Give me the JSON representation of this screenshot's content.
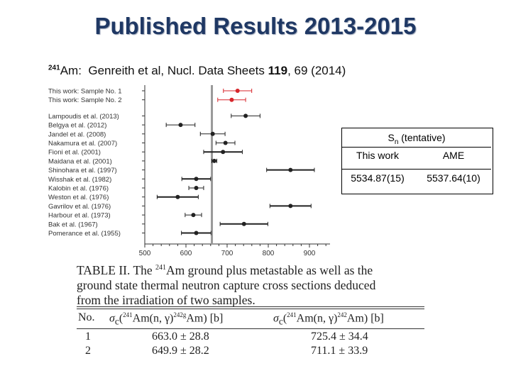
{
  "title": "Published Results 2013-2015",
  "reference": {
    "isotope_mass": "241",
    "isotope_symbol": "Am:",
    "authors": "Genreith et al, Nucl. Data Sheets",
    "volume": "119",
    "pages_year": ", 69 (2014)"
  },
  "chart_data": {
    "type": "scatter",
    "xticks": [
      "500",
      "600",
      "700",
      "800",
      "900"
    ],
    "xlim": [
      500,
      950
    ],
    "reference_line_x": 663,
    "entries": [
      {
        "label": "This work: Sample No. 1",
        "value": 725.4,
        "err": 34.4,
        "color": "#d7262b"
      },
      {
        "label": "This work: Sample No. 2",
        "value": 711.1,
        "err": 33.9,
        "color": "#d7262b"
      },
      {
        "label": "Lampoudis et al. (2013)",
        "value": 745,
        "err": 35,
        "color": "#222222"
      },
      {
        "label": "Belgya et al. (2012)",
        "value": 587,
        "err": 35,
        "color": "#222222"
      },
      {
        "label": "Jandel et al. (2008)",
        "value": 665,
        "err": 30,
        "color": "#222222"
      },
      {
        "label": "Nakamura et al. (2007)",
        "value": 696,
        "err": 23,
        "color": "#222222"
      },
      {
        "label": "Fioni et al. (2001)",
        "value": 690,
        "err": 47,
        "color": "#222222"
      },
      {
        "label": "Maidana et al. (2001)",
        "value": 669,
        "err": 6,
        "color": "#222222"
      },
      {
        "label": "Shinohara et al. (1997)",
        "value": 854,
        "err": 58,
        "color": "#222222"
      },
      {
        "label": "Wisshak et al. (1982)",
        "value": 625,
        "err": 35,
        "color": "#222222"
      },
      {
        "label": "Kalobin et al. (1976)",
        "value": 625,
        "err": 18,
        "color": "#222222"
      },
      {
        "label": "Weston et al. (1976)",
        "value": 580,
        "err": 50,
        "color": "#222222"
      },
      {
        "label": "Gavrilov et al. (1976)",
        "value": 854,
        "err": 50,
        "color": "#222222"
      },
      {
        "label": "Harbour et al. (1973)",
        "value": 618,
        "err": 20,
        "color": "#222222"
      },
      {
        "label": "Bak et al. (1967)",
        "value": 741,
        "err": 58,
        "color": "#222222"
      },
      {
        "label": "Pomerance et al. (1955)",
        "value": 625,
        "err": 36,
        "color": "#222222"
      }
    ]
  },
  "sn_table": {
    "header": "S",
    "header_sub": "n",
    "header_suffix": " (tentative)",
    "col1": "This work",
    "col2": "AME",
    "val1": "5534.87(15)",
    "val2": "5537.64(10)"
  },
  "caption": {
    "line1a": "TABLE II. The ",
    "mass": "241",
    "line1b": "Am ground plus metastable as well as the",
    "line2": "ground state thermal neutron capture cross sections deduced",
    "line3": "from the irradiation of two samples."
  },
  "table": {
    "h_no": "No.",
    "h_col1_pre": "σ",
    "h_col1_sub": "c",
    "h_col1_a": "(",
    "h_col1_m1": "241",
    "h_col1_b": "Am(n, γ)",
    "h_col1_m2": "242g",
    "h_col1_c": "Am) [b]",
    "h_col2_pre": "σ",
    "h_col2_sub": "c",
    "h_col2_a": "(",
    "h_col2_m1": "241",
    "h_col2_b": "Am(n, γ)",
    "h_col2_m2": "242",
    "h_col2_c": "Am) [b]",
    "rows": [
      {
        "no": "1",
        "c1": "663.0 ± 28.8",
        "c2": "725.4 ± 34.4"
      },
      {
        "no": "2",
        "c1": "649.9 ± 28.2",
        "c2": "711.1 ± 33.9"
      }
    ]
  }
}
